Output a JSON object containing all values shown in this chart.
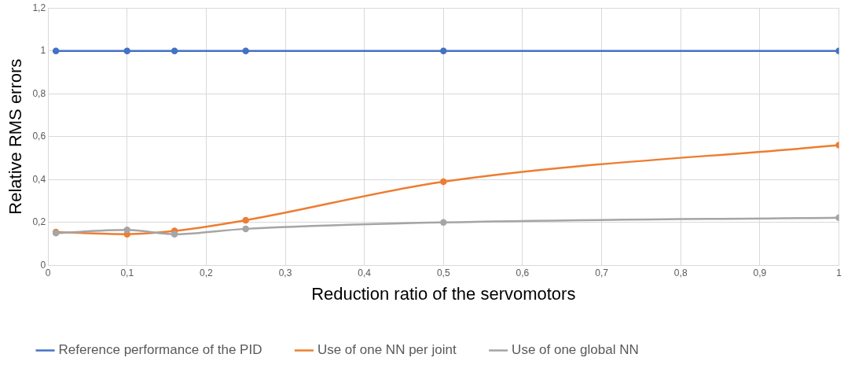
{
  "chart_data": {
    "type": "line",
    "xlabel": "Reduction ratio of the servomotors",
    "ylabel": "Relative RMS errors",
    "x": [
      0.01,
      0.1,
      0.16,
      0.25,
      0.5,
      1
    ],
    "series": [
      {
        "name": "Reference performance of the PID",
        "color": "#4472c4",
        "values": [
          1,
          1,
          1,
          1,
          1,
          1
        ]
      },
      {
        "name": "Use of one NN per joint",
        "color": "#ed7d31",
        "values": [
          0.155,
          0.145,
          0.16,
          0.21,
          0.39,
          0.56
        ]
      },
      {
        "name": "Use of one global NN",
        "color": "#a5a5a5",
        "values": [
          0.15,
          0.165,
          0.145,
          0.17,
          0.2,
          0.222
        ]
      }
    ],
    "xlim": [
      0,
      1
    ],
    "xticks": [
      0,
      {
        "value": 0.1,
        "label": "0,1"
      },
      {
        "value": 0.2,
        "label": "0,2"
      },
      {
        "value": 0.3,
        "label": "0,3"
      },
      {
        "value": 0.4,
        "label": "0,4"
      },
      {
        "value": 0.5,
        "label": "0,5"
      },
      {
        "value": 0.6,
        "label": "0,6"
      },
      {
        "value": 0.7,
        "label": "0,7"
      },
      {
        "value": 0.8,
        "label": "0,8"
      },
      {
        "value": 0.9,
        "label": "0,9"
      },
      1
    ],
    "ylim": [
      0,
      1.2
    ],
    "yticks": [
      0,
      {
        "value": 0.2,
        "label": "0,2"
      },
      {
        "value": 0.4,
        "label": "0,4"
      },
      {
        "value": 0.6,
        "label": "0,6"
      },
      {
        "value": 0.8,
        "label": "0,8"
      },
      1,
      {
        "value": 1.2,
        "label": "1,2"
      }
    ],
    "grid": true,
    "legend": "bottom",
    "marker": "circle",
    "line_style": "solid"
  }
}
